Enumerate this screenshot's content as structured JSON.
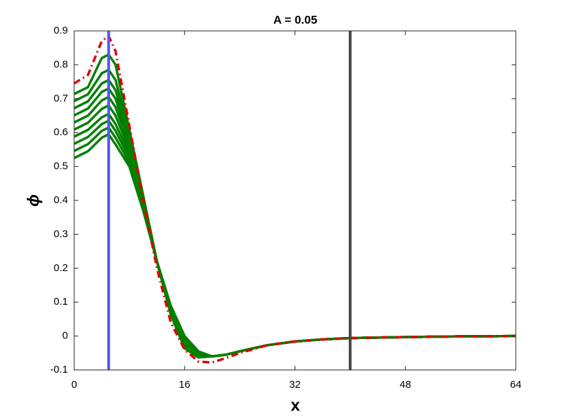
{
  "chart_data": {
    "type": "line",
    "title": "A = 0.05",
    "x_label": "x",
    "y_label": "ϕ",
    "x": [
      0,
      2,
      4,
      5,
      6,
      8,
      10,
      12,
      14,
      16,
      18,
      20,
      22,
      24,
      28,
      32,
      36,
      40,
      48,
      56,
      64
    ],
    "series": [
      {
        "color": "#008000",
        "style": "solid",
        "values": [
          0.525,
          0.545,
          0.585,
          0.595,
          0.565,
          0.5,
          0.37,
          0.22,
          0.09,
          0,
          -0.045,
          -0.06,
          -0.055,
          -0.045,
          -0.027,
          -0.016,
          -0.01,
          -0.006,
          -0.003,
          -0.001,
          0
        ]
      },
      {
        "color": "#008000",
        "style": "solid",
        "values": [
          0.546,
          0.566,
          0.605,
          0.615,
          0.585,
          0.512,
          0.375,
          0.22,
          0.087,
          -0.004,
          -0.047,
          -0.06,
          -0.055,
          -0.045,
          -0.027,
          -0.016,
          -0.01,
          -0.006,
          -0.003,
          -0.001,
          0
        ]
      },
      {
        "color": "#008000",
        "style": "solid",
        "values": [
          0.567,
          0.587,
          0.625,
          0.635,
          0.605,
          0.524,
          0.38,
          0.22,
          0.084,
          -0.008,
          -0.049,
          -0.06,
          -0.055,
          -0.045,
          -0.027,
          -0.016,
          -0.01,
          -0.006,
          -0.003,
          -0.001,
          0
        ]
      },
      {
        "color": "#008000",
        "style": "solid",
        "values": [
          0.588,
          0.608,
          0.645,
          0.655,
          0.625,
          0.536,
          0.385,
          0.22,
          0.081,
          -0.012,
          -0.051,
          -0.06,
          -0.055,
          -0.045,
          -0.027,
          -0.016,
          -0.01,
          -0.006,
          -0.003,
          -0.001,
          0
        ]
      },
      {
        "color": "#008000",
        "style": "solid",
        "values": [
          0.609,
          0.629,
          0.67,
          0.68,
          0.65,
          0.548,
          0.39,
          0.22,
          0.078,
          -0.016,
          -0.053,
          -0.06,
          -0.055,
          -0.045,
          -0.027,
          -0.016,
          -0.01,
          -0.006,
          -0.003,
          -0.001,
          0
        ]
      },
      {
        "color": "#008000",
        "style": "solid",
        "values": [
          0.63,
          0.65,
          0.695,
          0.705,
          0.675,
          0.56,
          0.395,
          0.22,
          0.075,
          -0.02,
          -0.055,
          -0.06,
          -0.055,
          -0.045,
          -0.027,
          -0.016,
          -0.01,
          -0.006,
          -0.003,
          -0.001,
          0
        ]
      },
      {
        "color": "#008000",
        "style": "solid",
        "values": [
          0.651,
          0.671,
          0.72,
          0.73,
          0.7,
          0.572,
          0.4,
          0.22,
          0.072,
          -0.024,
          -0.057,
          -0.06,
          -0.055,
          -0.045,
          -0.027,
          -0.016,
          -0.01,
          -0.006,
          -0.003,
          -0.001,
          0
        ]
      },
      {
        "color": "#008000",
        "style": "solid",
        "values": [
          0.672,
          0.692,
          0.745,
          0.755,
          0.725,
          0.584,
          0.405,
          0.22,
          0.069,
          -0.028,
          -0.059,
          -0.06,
          -0.055,
          -0.045,
          -0.027,
          -0.016,
          -0.01,
          -0.006,
          -0.003,
          -0.001,
          0
        ]
      },
      {
        "color": "#008000",
        "style": "solid",
        "values": [
          0.693,
          0.713,
          0.775,
          0.785,
          0.755,
          0.596,
          0.41,
          0.22,
          0.066,
          -0.032,
          -0.061,
          -0.06,
          -0.055,
          -0.045,
          -0.027,
          -0.016,
          -0.01,
          -0.006,
          -0.003,
          -0.001,
          0
        ]
      },
      {
        "color": "#008000",
        "style": "solid",
        "values": [
          0.714,
          0.734,
          0.82,
          0.83,
          0.8,
          0.608,
          0.415,
          0.22,
          0.063,
          -0.036,
          -0.063,
          -0.06,
          -0.055,
          -0.045,
          -0.027,
          -0.016,
          -0.01,
          -0.006,
          -0.003,
          -0.001,
          0
        ]
      },
      {
        "color": "#e00000",
        "style": "dashdot",
        "values": [
          0.745,
          0.77,
          0.87,
          0.885,
          0.84,
          0.62,
          0.4,
          0.2,
          0.04,
          -0.04,
          -0.075,
          -0.078,
          -0.065,
          -0.05,
          -0.027,
          -0.016,
          -0.01,
          -0.006,
          -0.003,
          -0.001,
          0
        ]
      }
    ],
    "vlines": [
      {
        "x": 5,
        "color": "#5555ee"
      },
      {
        "x": 40,
        "color": "#444444"
      }
    ],
    "xlim": [
      0,
      64
    ],
    "xticks": [
      0,
      16,
      32,
      48,
      64
    ],
    "ylim": [
      -0.1,
      0.9
    ],
    "yticks": [
      -0.1,
      0,
      0.1,
      0.2,
      0.3,
      0.4,
      0.5,
      0.6,
      0.7,
      0.8,
      0.9
    ]
  }
}
